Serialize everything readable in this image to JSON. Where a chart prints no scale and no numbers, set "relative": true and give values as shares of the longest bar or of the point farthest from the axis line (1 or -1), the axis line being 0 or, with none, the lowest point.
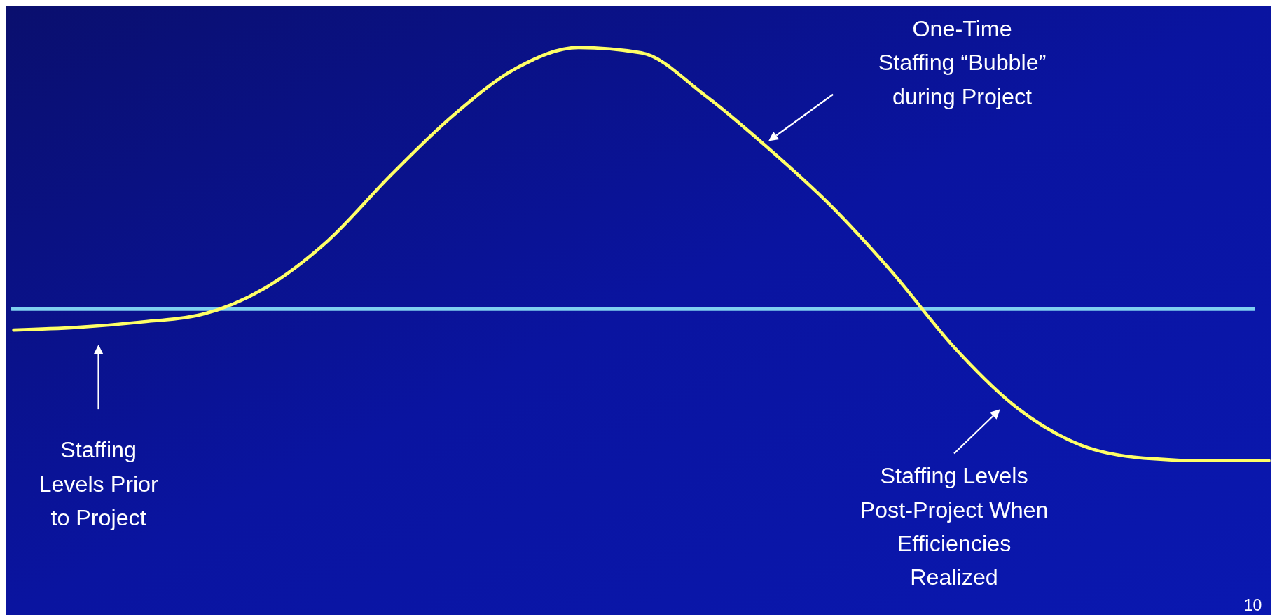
{
  "chart_data": {
    "type": "line",
    "relative": true,
    "categories": [
      null,
      null,
      null,
      null,
      null,
      null,
      null,
      null,
      null,
      null,
      null,
      null,
      null,
      null,
      null,
      null,
      null,
      null,
      null,
      null,
      null
    ],
    "series": [
      {
        "color": "#ffff66",
        "values": [
          -0.08,
          -0.07,
          -0.05,
          -0.02,
          0.08,
          0.26,
          0.51,
          0.74,
          0.92,
          1.0,
          0.98,
          0.82,
          0.62,
          0.4,
          0.14,
          -0.15,
          -0.38,
          -0.52,
          -0.57,
          -0.58,
          -0.58
        ]
      }
    ],
    "ref_lines": [
      {
        "axis": "y",
        "value": 0,
        "color": "#7fd0f0"
      }
    ],
    "marker": "none",
    "line_style": "solid",
    "annotations": [
      "One-Time\nStaffing “Bubble”\nduring Project",
      "Staffing\nLevels Prior\nto Project",
      "Staffing Levels\nPost-Project When\nEfficiencies\nRealized",
      "10"
    ]
  }
}
